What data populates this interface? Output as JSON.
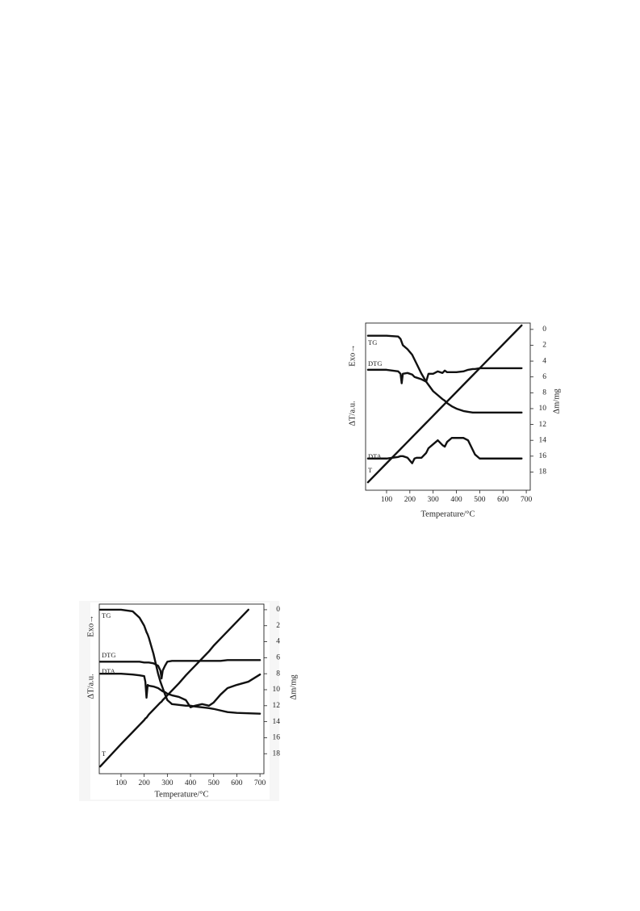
{
  "chart_data": [
    {
      "type": "line",
      "x_label": "Temperature/°C",
      "y_label": "Δm/mg",
      "left_labels": [
        "Exo→",
        "ΔT/a.u."
      ],
      "xlim": [
        10,
        717
      ],
      "xticks": [
        100,
        200,
        300,
        400,
        500,
        600,
        700
      ],
      "ylim": [
        -0.8,
        20.3
      ],
      "yticks": [
        0,
        2,
        4,
        6,
        8,
        10,
        12,
        14,
        16,
        18
      ],
      "y_inverted": true,
      "y_axis_side": "right",
      "grid": false,
      "x": [
        20,
        100,
        150,
        160,
        165,
        170,
        190,
        210,
        220,
        230,
        250,
        270,
        280,
        300,
        320,
        340,
        350,
        360,
        380,
        400,
        430,
        450,
        470,
        480,
        500,
        550,
        600,
        680
      ],
      "series": [
        {
          "name": "TG",
          "color": "#111111",
          "values": [
            0.8,
            0.8,
            0.9,
            1.2,
            1.6,
            2.0,
            2.5,
            3.2,
            3.8,
            4.4,
            5.6,
            6.6,
            7.0,
            7.8,
            8.3,
            8.8,
            9.0,
            9.3,
            9.7,
            10.0,
            10.3,
            10.4,
            10.5,
            10.5,
            10.5,
            10.5,
            10.5,
            10.5
          ]
        },
        {
          "name": "DTG",
          "color": "#111111",
          "values": [
            5.1,
            5.1,
            5.3,
            5.6,
            6.8,
            5.6,
            5.5,
            5.7,
            6.0,
            6.1,
            6.3,
            6.6,
            5.6,
            5.6,
            5.3,
            5.5,
            5.2,
            5.4,
            5.4,
            5.4,
            5.3,
            5.1,
            5.0,
            5.0,
            4.9,
            4.9,
            4.9,
            4.9
          ]
        },
        {
          "name": "DTA",
          "color": "#111111",
          "values": [
            16.3,
            16.3,
            16.1,
            16.0,
            16.0,
            16.0,
            16.2,
            16.9,
            16.3,
            16.2,
            16.2,
            15.6,
            15.0,
            14.5,
            14.0,
            14.6,
            14.8,
            14.2,
            13.7,
            13.7,
            13.7,
            14.0,
            15.2,
            15.8,
            16.3,
            16.3,
            16.3,
            16.3
          ]
        },
        {
          "name": "T",
          "color": "#111111",
          "values": [
            19.3,
            16.9,
            15.4,
            15.1,
            14.95,
            14.8,
            14.2,
            13.6,
            13.3,
            13.0,
            12.4,
            11.8,
            11.5,
            10.9,
            10.3,
            9.7,
            9.4,
            9.1,
            8.5,
            7.9,
            7.0,
            6.4,
            5.8,
            5.5,
            4.9,
            3.4,
            1.9,
            -0.5
          ]
        }
      ]
    },
    {
      "type": "line",
      "x_label": "Temperature/°C",
      "y_label": "Δm/mg",
      "left_labels": [
        "Exo→",
        "ΔT/a.u."
      ],
      "xlim": [
        6,
        717
      ],
      "xticks": [
        100,
        200,
        300,
        400,
        500,
        600,
        700
      ],
      "ylim": [
        -0.7,
        20.5
      ],
      "yticks": [
        0,
        2,
        4,
        6,
        8,
        10,
        12,
        14,
        16,
        18
      ],
      "y_inverted": true,
      "y_axis_side": "right",
      "grid": false,
      "x": [
        10,
        100,
        150,
        180,
        200,
        205,
        210,
        215,
        220,
        240,
        260,
        270,
        275,
        280,
        290,
        300,
        320,
        350,
        380,
        400,
        420,
        450,
        480,
        500,
        530,
        560,
        600,
        650,
        700
      ],
      "series": [
        {
          "name": "TG",
          "color": "#111111",
          "values": [
            0,
            0,
            0.2,
            1.0,
            2.0,
            2.4,
            2.8,
            3.1,
            3.5,
            5.5,
            8.0,
            9.0,
            9.4,
            9.8,
            10.6,
            11.3,
            11.8,
            11.9,
            12.0,
            12.0,
            12.1,
            12.2,
            12.3,
            12.4,
            12.6,
            12.8,
            12.9,
            12.95,
            13.0
          ]
        },
        {
          "name": "DTG",
          "color": "#111111",
          "values": [
            6.5,
            6.5,
            6.5,
            6.5,
            6.6,
            6.6,
            6.6,
            6.6,
            6.6,
            6.7,
            7.0,
            7.6,
            8.6,
            7.6,
            7.0,
            6.5,
            6.4,
            6.4,
            6.4,
            6.4,
            6.4,
            6.4,
            6.4,
            6.4,
            6.4,
            6.3,
            6.3,
            6.3,
            6.3
          ]
        },
        {
          "name": "DTA",
          "color": "#111111",
          "values": [
            8.0,
            8.0,
            8.1,
            8.2,
            8.3,
            9.0,
            11.0,
            9.4,
            9.5,
            9.6,
            9.8,
            10.0,
            10.1,
            10.2,
            10.3,
            10.5,
            10.7,
            10.9,
            11.3,
            12.2,
            12.0,
            11.8,
            12.0,
            11.6,
            10.6,
            9.8,
            9.4,
            9.0,
            8.1
          ]
        },
        {
          "name": "T",
          "color": "#111111",
          "values": [
            19.6,
            16.8,
            15.3,
            14.4,
            13.8,
            13.6,
            13.5,
            13.3,
            13.1,
            12.5,
            11.9,
            11.6,
            11.5,
            11.3,
            11.0,
            10.7,
            10.1,
            9.2,
            8.2,
            7.6,
            7.0,
            6.1,
            5.2,
            4.5,
            3.6,
            2.7,
            1.5,
            0.0,
            null
          ]
        }
      ]
    }
  ]
}
